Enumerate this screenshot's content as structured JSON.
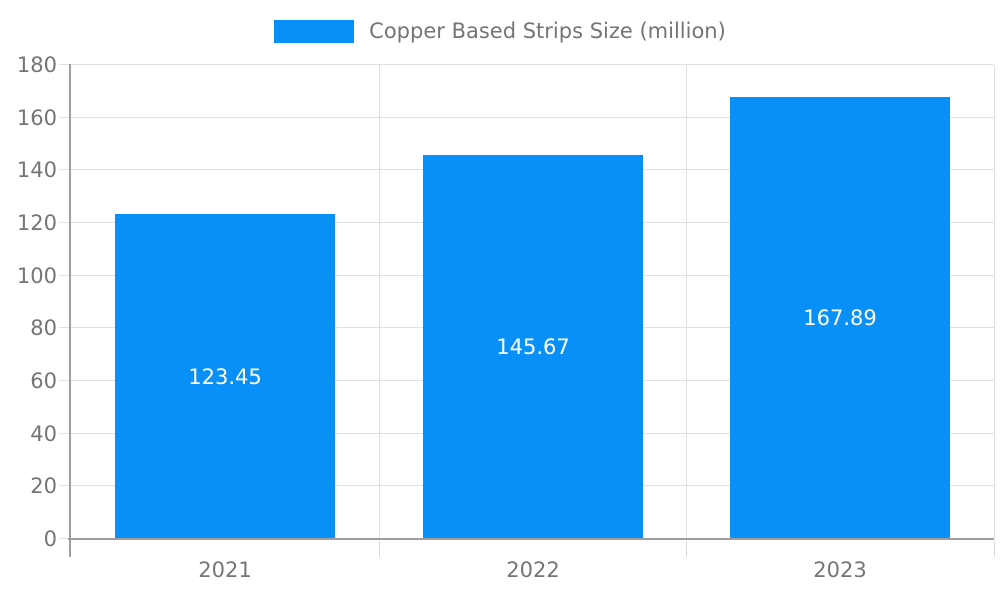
{
  "chart": {
    "background": "#ffffff",
    "axis_text_color": "#757575",
    "axis_line_color": "#9e9e9e",
    "grid_color": "#e0e0e0"
  },
  "chart_data": {
    "type": "bar",
    "title": "Copper Based Strips Size (million)",
    "categories": [
      "2021",
      "2022",
      "2023"
    ],
    "series": [
      {
        "name": "Copper Based Strips Size (million)",
        "color": "#0890f8",
        "values": [
          123.45,
          145.67,
          167.89
        ],
        "data_labels": [
          "123.45",
          "145.67",
          "167.89"
        ],
        "data_label_color": "#ffffff",
        "data_label_position": "inside-center"
      }
    ],
    "xlabel": "",
    "ylabel": "",
    "ylim": [
      0,
      180
    ],
    "yticks": [
      0,
      20,
      40,
      60,
      80,
      100,
      120,
      140,
      160,
      180
    ],
    "grid": true,
    "legend_position": "top-center"
  }
}
